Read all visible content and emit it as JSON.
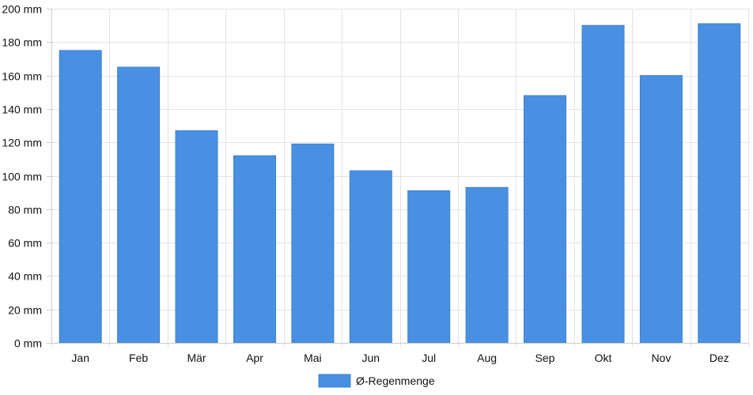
{
  "chart_data": {
    "type": "bar",
    "categories": [
      "Jan",
      "Feb",
      "Mär",
      "Apr",
      "Mai",
      "Jun",
      "Jul",
      "Aug",
      "Sep",
      "Okt",
      "Nov",
      "Dez"
    ],
    "series": [
      {
        "name": "Ø-Regenmenge",
        "values": [
          175,
          165,
          127,
          112,
          119,
          103,
          91,
          93,
          148,
          190,
          160,
          191
        ],
        "color": "#4a90e2"
      }
    ],
    "y_ticks": [
      "0 mm",
      "20 mm",
      "40 mm",
      "60 mm",
      "80 mm",
      "100 mm",
      "120 mm",
      "140 mm",
      "160 mm",
      "180 mm",
      "200 mm"
    ],
    "ylim": [
      0,
      200
    ],
    "y_unit": "mm",
    "grid": true,
    "legend_position": "bottom"
  }
}
